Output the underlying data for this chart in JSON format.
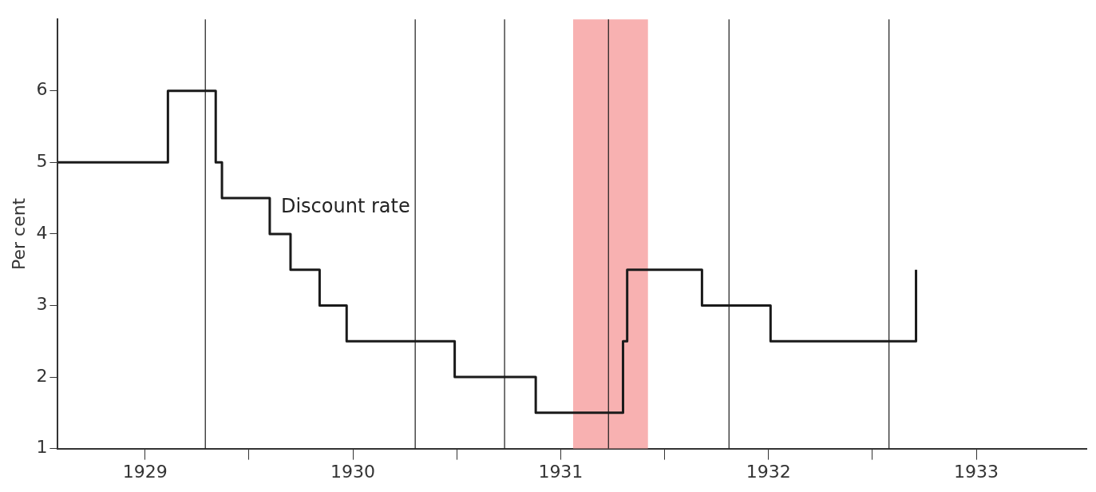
{
  "chart_data": {
    "type": "step",
    "ylabel": "Per cent",
    "xlim": [
      1929.08,
      1934.03
    ],
    "ylim": [
      1,
      7
    ],
    "xticks": [
      {
        "value": 1929.5,
        "label": "1929"
      },
      {
        "value": 1930,
        "label": null
      },
      {
        "value": 1930.5,
        "label": "1930"
      },
      {
        "value": 1931,
        "label": null
      },
      {
        "value": 1931.5,
        "label": "1931"
      },
      {
        "value": 1932,
        "label": null
      },
      {
        "value": 1932.5,
        "label": "1932"
      },
      {
        "value": 1933,
        "label": null
      },
      {
        "value": 1933.5,
        "label": "1933"
      }
    ],
    "yticks": [
      1,
      2,
      3,
      4,
      5,
      6
    ],
    "grid": false,
    "legend": false,
    "marker": "none",
    "line_style": "solid",
    "series": [
      {
        "name": "Discount rate",
        "color": "#1a1a1a",
        "x": [
          1929.08,
          1929.61,
          1929.84,
          1929.87,
          1930.1,
          1930.2,
          1930.34,
          1930.47,
          1930.99,
          1931.38,
          1931.8,
          1931.82,
          1932.18,
          1932.51,
          1933.21
        ],
        "values": [
          5,
          6,
          5,
          4.5,
          4,
          3.5,
          3,
          2.5,
          2,
          1.5,
          2.5,
          3.5,
          3,
          2.5,
          3.5
        ]
      }
    ],
    "bands": [
      {
        "axis": "x",
        "from": 1931.56,
        "to": 1931.92,
        "color": "#f7a8a8"
      }
    ],
    "ref_lines": [
      {
        "axis": "x",
        "value": 1929.79,
        "color": "#1a1a1a"
      },
      {
        "axis": "x",
        "value": 1930.8,
        "color": "#1a1a1a"
      },
      {
        "axis": "x",
        "value": 1931.23,
        "color": "#1a1a1a"
      },
      {
        "axis": "x",
        "value": 1931.73,
        "color": "#1a1a1a"
      },
      {
        "axis": "x",
        "value": 1932.31,
        "color": "#1a1a1a"
      },
      {
        "axis": "x",
        "value": 1933.08,
        "color": "#1a1a1a"
      }
    ]
  }
}
